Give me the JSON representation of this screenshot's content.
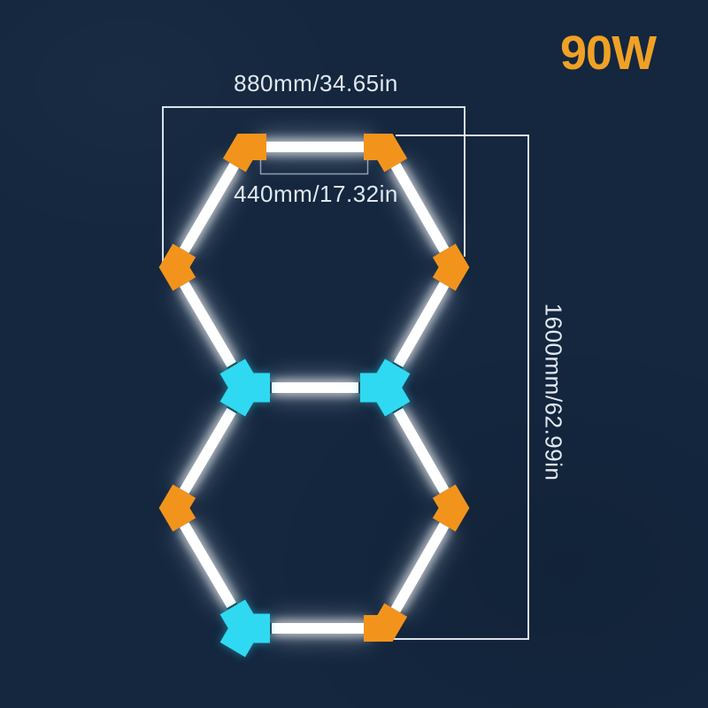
{
  "product": {
    "wattage_label": "90W"
  },
  "dimensions": {
    "overall_width": "880mm/34.65in",
    "tube_segment": "440mm/17.32in",
    "overall_height": "1600mm/62.99in"
  },
  "figure": {
    "description": "Two stacked hexagon-shaped LED tube light frames with orange corner connectors and cyan three-way connectors, annotated with dimension lines",
    "hexagon_count": 2,
    "tube_count": 11,
    "colors": {
      "background": "#14273F",
      "tube_core": "#FFFFFF",
      "tube_glow": "#E6F2FF",
      "connector_orange": "#F2941C",
      "connector_cyan": "#2FD9F2",
      "tube_end_cap": "#232933",
      "dimension_line": "#EDF2F8",
      "bracket_line": "#AAB9CE",
      "label_text": "#E2E8F1",
      "wattage_text": "#F0A125"
    }
  }
}
